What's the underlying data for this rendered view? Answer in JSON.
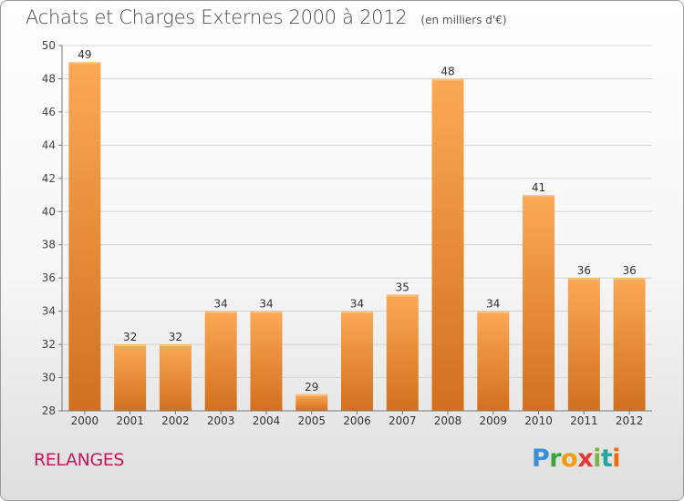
{
  "title": "Achats et Charges Externes 2000 à 2012",
  "subtitle": "(en milliers d'€)",
  "location_label": "RELANGES",
  "logo_text": "Proxiti",
  "colors": {
    "bar_light": "#fba955",
    "bar_dark": "#d2701d",
    "grid": "#d4d4d4",
    "axis": "#777777",
    "location": "#c2185b"
  },
  "chart_data": {
    "type": "bar",
    "title": "Achats et Charges Externes 2000 à 2012",
    "subtitle": "(en milliers d'€)",
    "xlabel": "",
    "ylabel": "",
    "categories": [
      "2000",
      "2001",
      "2002",
      "2003",
      "2004",
      "2005",
      "2006",
      "2007",
      "2008",
      "2009",
      "2010",
      "2011",
      "2012"
    ],
    "values": [
      49,
      32,
      32,
      34,
      34,
      29,
      34,
      35,
      48,
      34,
      41,
      36,
      36
    ],
    "ylim": [
      28,
      50
    ],
    "yticks": [
      28,
      30,
      32,
      34,
      36,
      38,
      40,
      42,
      44,
      46,
      48,
      50
    ],
    "grid": true,
    "legend": "none",
    "data_labels": true
  }
}
